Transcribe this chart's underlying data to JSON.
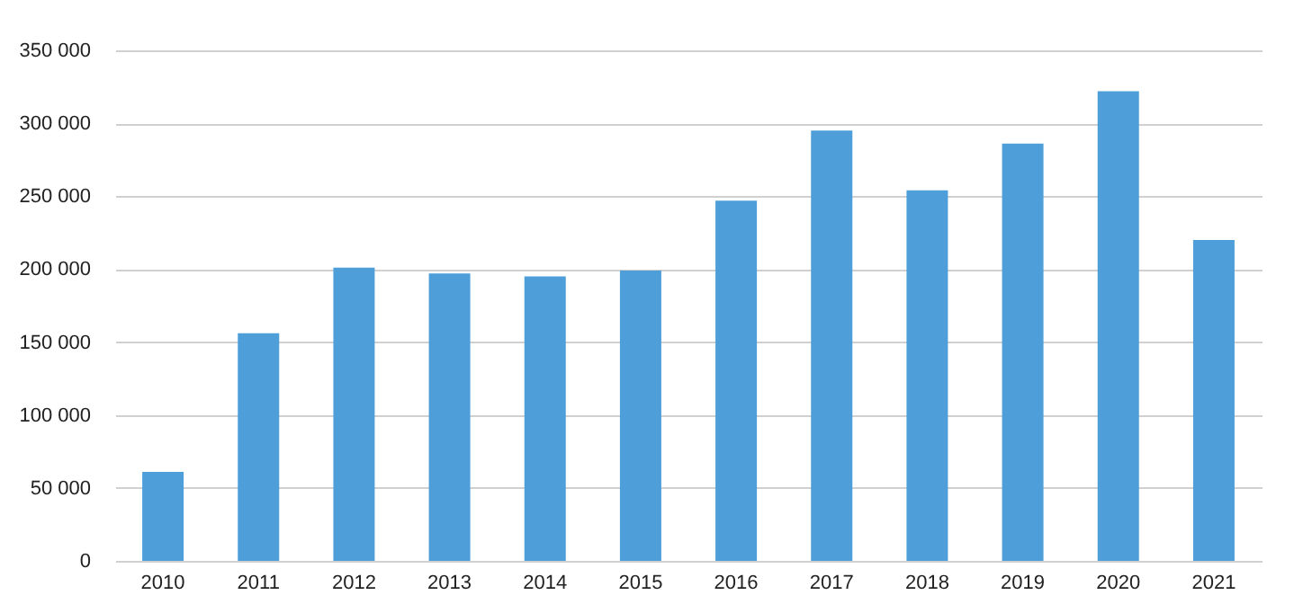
{
  "chart_data": {
    "type": "bar",
    "categories": [
      "2010",
      "2011",
      "2012",
      "2013",
      "2014",
      "2015",
      "2016",
      "2017",
      "2018",
      "2019",
      "2020",
      "2021"
    ],
    "values": [
      61000,
      156000,
      201000,
      197000,
      195000,
      199000,
      247000,
      295000,
      254000,
      286000,
      322000,
      220000
    ],
    "color": "#4e9fd9",
    "ylim": [
      0,
      350000
    ],
    "yticks": [
      0,
      {
        "value": 50000,
        "label": "50 000"
      },
      {
        "value": 100000,
        "label": "100 000"
      },
      {
        "value": 150000,
        "label": "150 000"
      },
      {
        "value": 200000,
        "label": "200 000"
      },
      {
        "value": 250000,
        "label": "250 000"
      },
      {
        "value": 300000,
        "label": "300 000"
      },
      {
        "value": 350000,
        "label": "350 000"
      }
    ],
    "grid": "y"
  }
}
